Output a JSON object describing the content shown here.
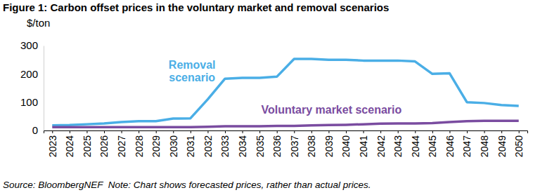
{
  "chart_data": {
    "type": "line",
    "title": "Figure 1: Carbon offset prices in the voluntary market and removal scenarios",
    "y_label": "$/ton",
    "source": "Source: BloombergNEF  Note: Chart shows forecasted prices, rather than actual prices.",
    "categories": [
      "2023",
      "2024",
      "2025",
      "2026",
      "2027",
      "2028",
      "2029",
      "2030",
      "2031",
      "2032",
      "2033",
      "2034",
      "2035",
      "2036",
      "2037",
      "2038",
      "2039",
      "2040",
      "2041",
      "2042",
      "2043",
      "2044",
      "2045",
      "2046",
      "2047",
      "2048",
      "2049",
      "2050"
    ],
    "series": [
      {
        "name": "Removal scenario",
        "color": "#4aaee6",
        "values": [
          18,
          19,
          22,
          25,
          30,
          33,
          33,
          42,
          43,
          110,
          183,
          186,
          186,
          190,
          253,
          253,
          250,
          250,
          247,
          247,
          247,
          244,
          200,
          202,
          100,
          97,
          90,
          87
        ]
      },
      {
        "name": "Voluntary market scenario",
        "color": "#7a4ca0",
        "values": [
          12,
          12,
          12,
          12,
          12,
          12,
          12,
          12,
          12,
          13,
          15,
          15,
          15,
          16,
          16,
          18,
          19,
          20,
          22,
          24,
          25,
          25,
          26,
          30,
          33,
          34,
          34,
          34
        ]
      }
    ],
    "ylim": [
      0,
      300
    ],
    "yticks": [
      0,
      100,
      200,
      300
    ],
    "grid": false
  }
}
